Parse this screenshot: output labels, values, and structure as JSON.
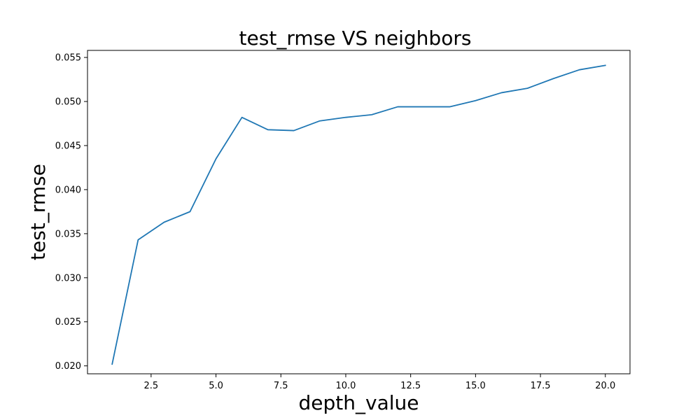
{
  "chart_data": {
    "type": "line",
    "title": "test_rmse VS neighbors",
    "xlabel": "depth_value",
    "ylabel": "test_rmse",
    "xlim": [
      0.05,
      20.95
    ],
    "ylim": [
      0.0191,
      0.0558
    ],
    "xticks": [
      2.5,
      5.0,
      7.5,
      10.0,
      12.5,
      15.0,
      17.5,
      20.0
    ],
    "xtick_labels": [
      "2.5",
      "5.0",
      "7.5",
      "10.0",
      "12.5",
      "15.0",
      "17.5",
      "20.0"
    ],
    "yticks": [
      0.02,
      0.025,
      0.03,
      0.035,
      0.04,
      0.045,
      0.05,
      0.055
    ],
    "ytick_labels": [
      "0.020",
      "0.025",
      "0.030",
      "0.035",
      "0.040",
      "0.045",
      "0.050",
      "0.055"
    ],
    "grid": false,
    "series": [
      {
        "color": "#1f77b4",
        "x": [
          1,
          2,
          3,
          4,
          5,
          6,
          7,
          8,
          9,
          10,
          11,
          12,
          13,
          14,
          15,
          16,
          17,
          18,
          19,
          20
        ],
        "values": [
          0.0202,
          0.0343,
          0.0363,
          0.0375,
          0.0435,
          0.0482,
          0.0468,
          0.0467,
          0.0478,
          0.0482,
          0.0485,
          0.0494,
          0.0494,
          0.0494,
          0.0501,
          0.051,
          0.0515,
          0.0526,
          0.0536,
          0.0541
        ]
      }
    ]
  }
}
